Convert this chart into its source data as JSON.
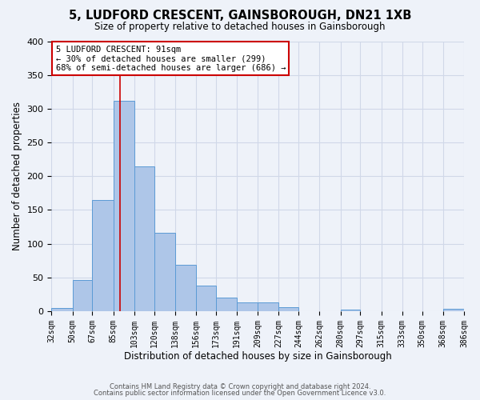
{
  "title1": "5, LUDFORD CRESCENT, GAINSBOROUGH, DN21 1XB",
  "title2": "Size of property relative to detached houses in Gainsborough",
  "xlabel": "Distribution of detached houses by size in Gainsborough",
  "ylabel": "Number of detached properties",
  "footer1": "Contains HM Land Registry data © Crown copyright and database right 2024.",
  "footer2": "Contains public sector information licensed under the Open Government Licence v3.0.",
  "bin_labels": [
    "32sqm",
    "50sqm",
    "67sqm",
    "85sqm",
    "103sqm",
    "120sqm",
    "138sqm",
    "156sqm",
    "173sqm",
    "191sqm",
    "209sqm",
    "227sqm",
    "244sqm",
    "262sqm",
    "280sqm",
    "297sqm",
    "315sqm",
    "333sqm",
    "350sqm",
    "368sqm",
    "386sqm"
  ],
  "bar_heights": [
    5,
    46,
    165,
    312,
    215,
    116,
    69,
    38,
    20,
    13,
    13,
    6,
    0,
    0,
    2,
    0,
    0,
    0,
    0,
    3
  ],
  "bar_color": "#aec6e8",
  "bar_edge_color": "#5b9bd5",
  "vline_x": 91,
  "vline_color": "#cc0000",
  "bin_edges_sqm": [
    32,
    50,
    67,
    85,
    103,
    120,
    138,
    156,
    173,
    191,
    209,
    227,
    244,
    262,
    280,
    297,
    315,
    333,
    350,
    368,
    386
  ],
  "ylim": [
    0,
    400
  ],
  "yticks": [
    0,
    50,
    100,
    150,
    200,
    250,
    300,
    350,
    400
  ],
  "annotation_title": "5 LUDFORD CRESCENT: 91sqm",
  "annotation_line1": "← 30% of detached houses are smaller (299)",
  "annotation_line2": "68% of semi-detached houses are larger (686) →",
  "annotation_box_color": "#ffffff",
  "annotation_box_edge": "#cc0000",
  "grid_color": "#d0d8e8",
  "bg_color": "#eef2f9"
}
